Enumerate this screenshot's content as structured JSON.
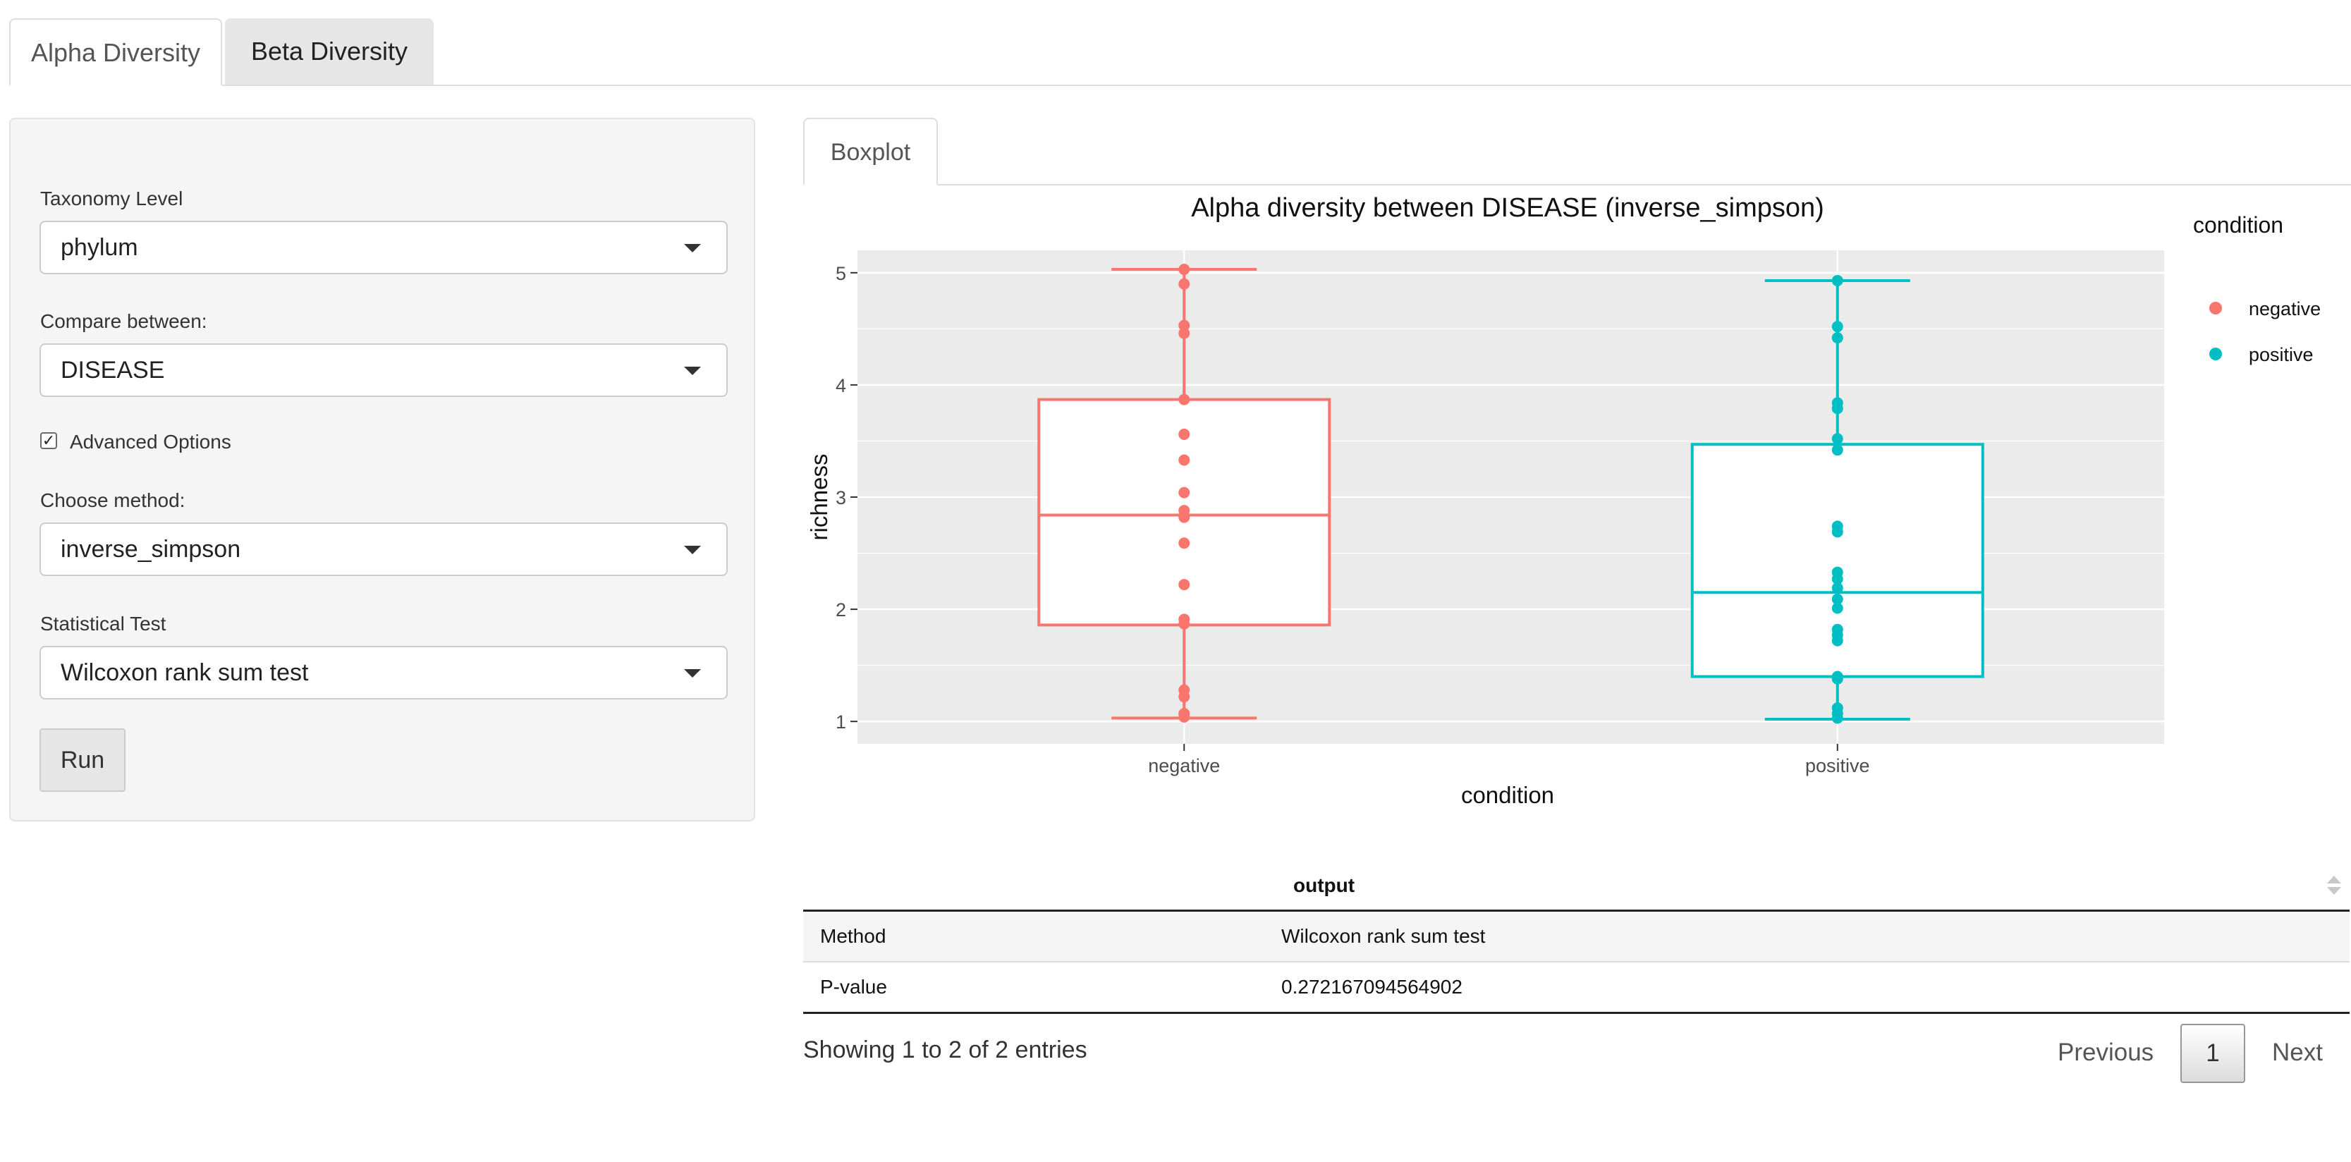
{
  "tabs": [
    {
      "label": "Alpha Diversity",
      "active": true
    },
    {
      "label": "Beta Diversity",
      "active": false
    }
  ],
  "sidebar": {
    "taxonomy_label": "Taxonomy Level",
    "taxonomy_value": "phylum",
    "compare_label": "Compare between:",
    "compare_value": "DISEASE",
    "advanced_label": "Advanced Options",
    "advanced_checked": true,
    "method_label": "Choose method:",
    "method_value": "inverse_simpson",
    "test_label": "Statistical Test",
    "test_value": "Wilcoxon rank sum test",
    "run_label": "Run"
  },
  "subtab": {
    "label": "Boxplot"
  },
  "chart_data": {
    "type": "boxplot",
    "title": "Alpha diversity between DISEASE (inverse_simpson)",
    "xlabel": "condition",
    "ylabel": "richness",
    "categories": [
      "negative",
      "positive"
    ],
    "yticks": [
      1,
      2,
      3,
      4,
      5
    ],
    "ylim": [
      0.8,
      5.2
    ],
    "grid": true,
    "legend": {
      "title": "condition",
      "position": "right",
      "entries": [
        "negative",
        "positive"
      ]
    },
    "series": [
      {
        "name": "negative",
        "color": "#F8766D",
        "min": 1.03,
        "q1": 1.86,
        "median": 2.84,
        "q3": 3.87,
        "max": 5.03,
        "points": [
          5.03,
          4.9,
          4.53,
          4.46,
          3.87,
          3.56,
          3.33,
          3.04,
          2.88,
          2.82,
          2.59,
          2.22,
          1.91,
          1.87,
          1.28,
          1.22,
          1.07,
          1.04
        ]
      },
      {
        "name": "positive",
        "color": "#00BFC4",
        "min": 1.02,
        "q1": 1.4,
        "median": 2.15,
        "q3": 3.47,
        "max": 4.93,
        "points": [
          4.93,
          4.52,
          4.42,
          3.84,
          3.79,
          3.52,
          3.42,
          2.74,
          2.69,
          2.33,
          2.27,
          2.19,
          2.09,
          2.01,
          1.82,
          1.77,
          1.72,
          1.4,
          1.38,
          1.12,
          1.07,
          1.03
        ]
      }
    ]
  },
  "table": {
    "header": "output",
    "rows": [
      {
        "key": "Method",
        "value": "Wilcoxon rank sum test"
      },
      {
        "key": "P-value",
        "value": "0.272167094564902"
      }
    ],
    "info": "Showing 1 to 2 of 2 entries",
    "prev_label": "Previous",
    "page_label": "1",
    "next_label": "Next"
  }
}
